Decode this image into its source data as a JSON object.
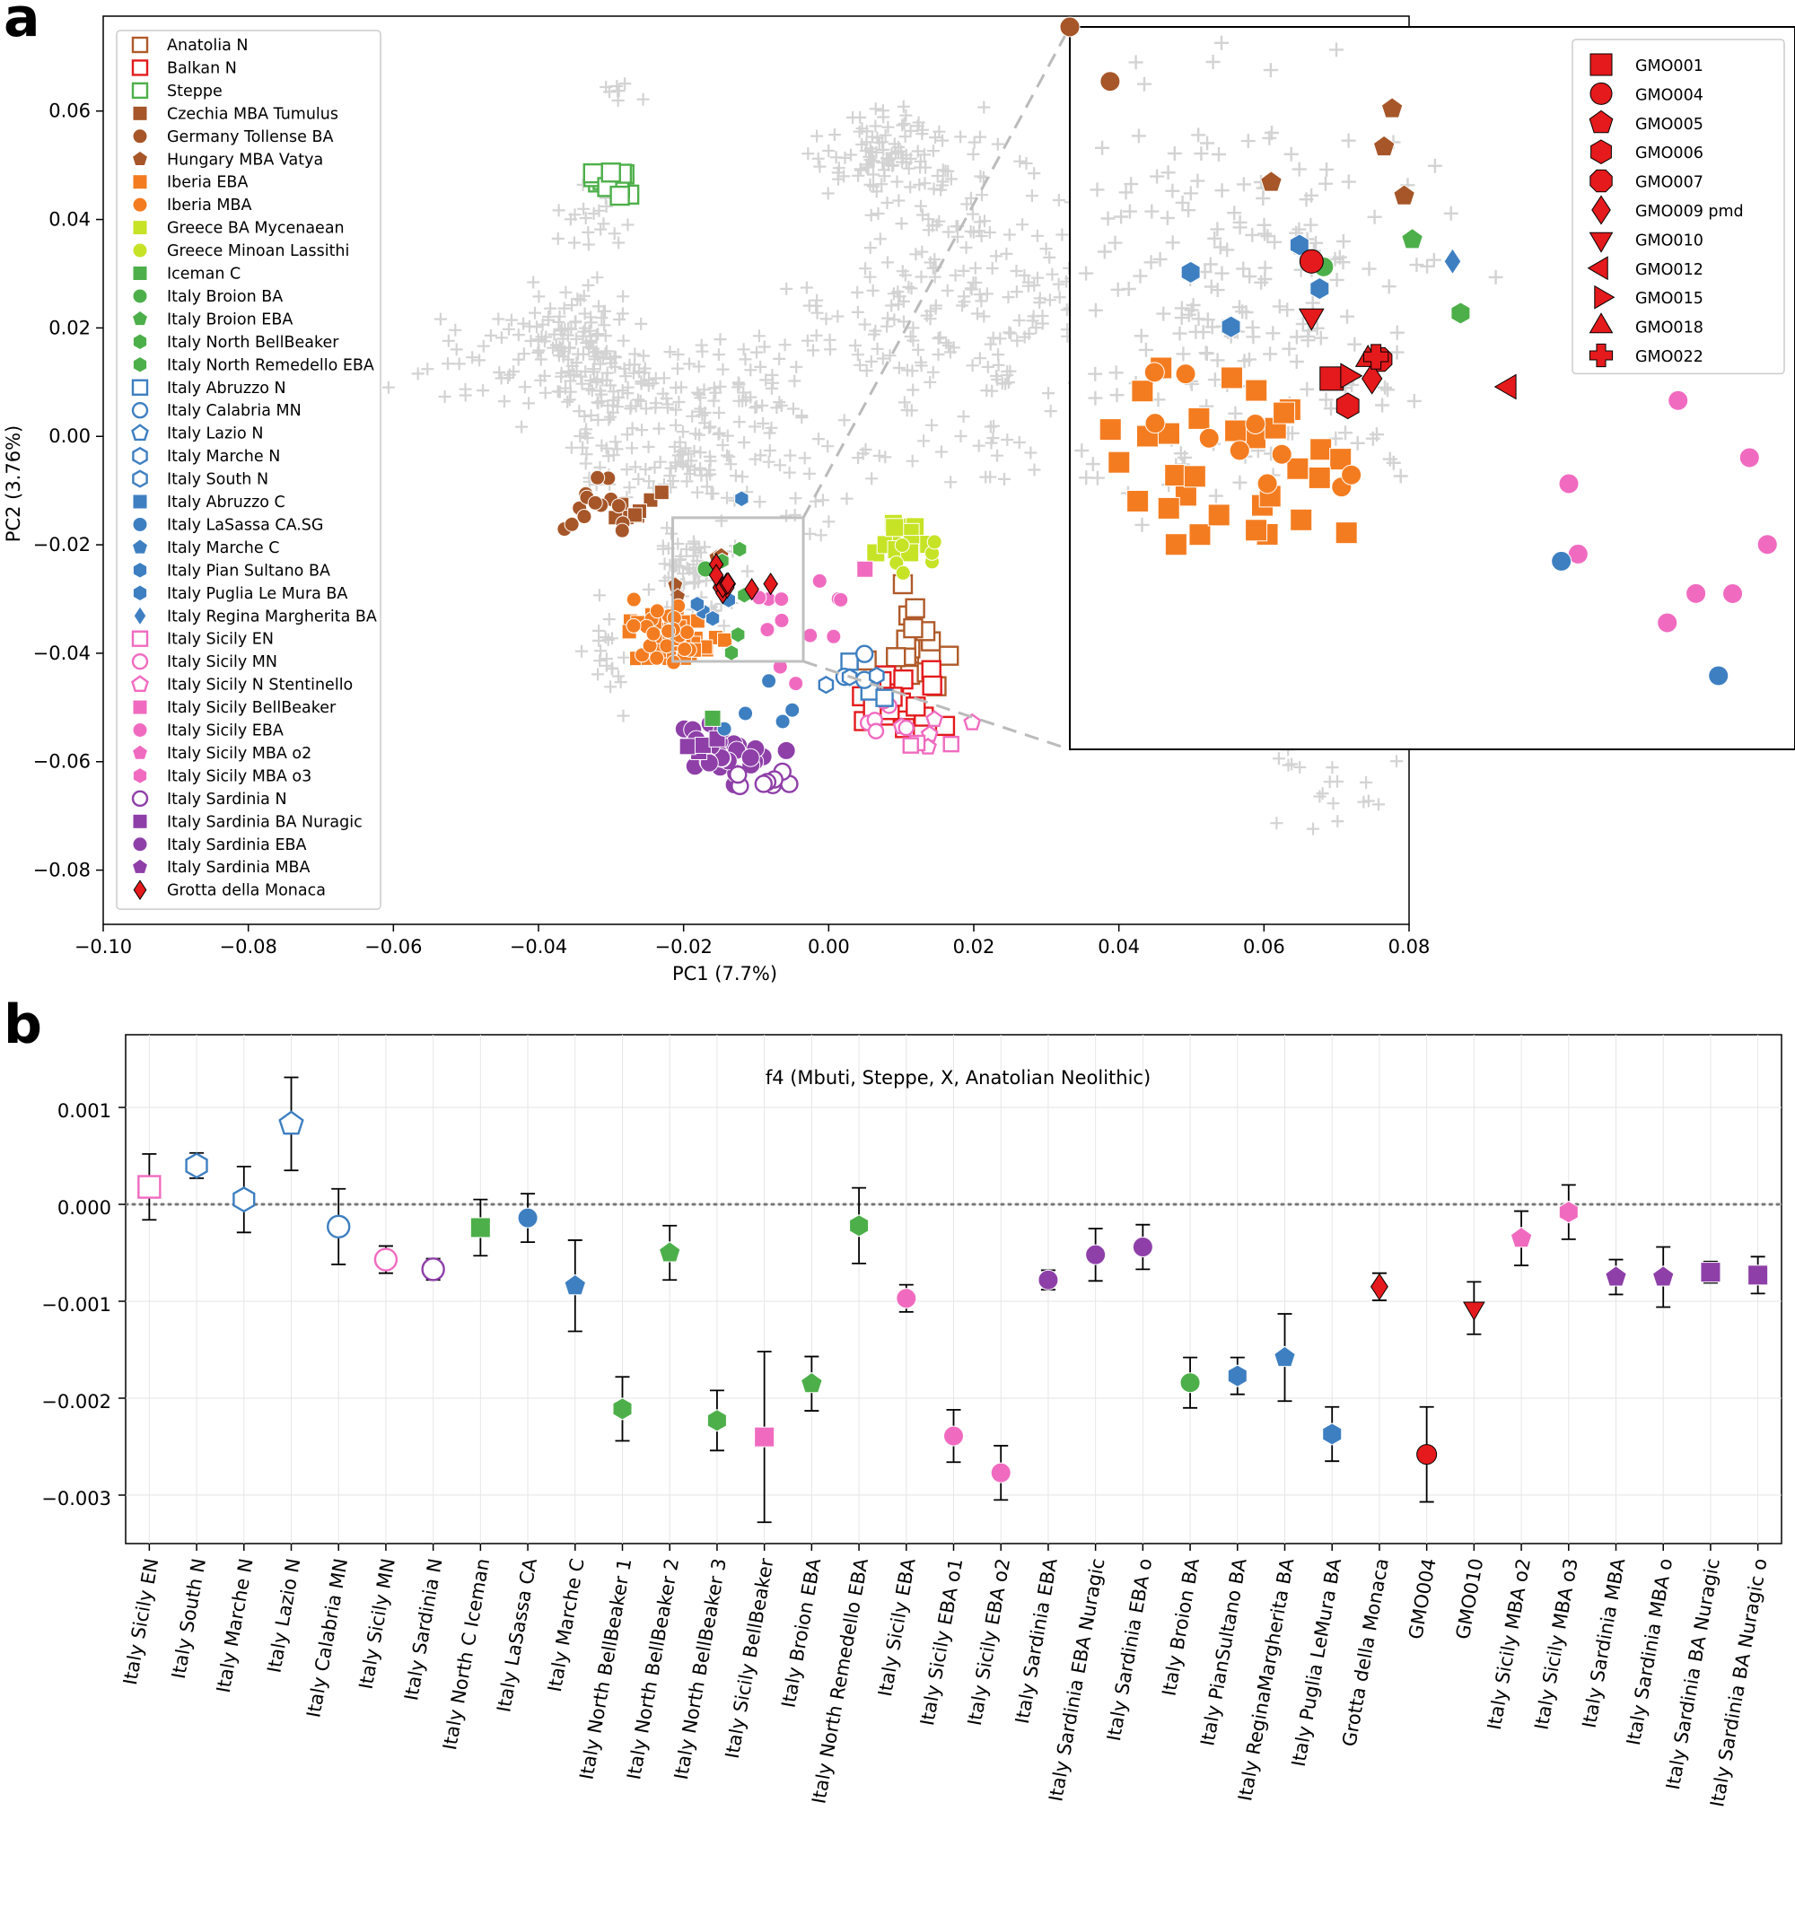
{
  "panel_a": {
    "letter": "a",
    "chart_data": {
      "type": "scatter",
      "title": "",
      "xlabel": "PC1 (7.7%)",
      "ylabel": "PC2 (3.76%)",
      "xlim": [
        -0.1,
        0.08
      ],
      "ylim": [
        -0.09,
        0.0775
      ],
      "xticks": [
        "−0.10",
        "−0.08",
        "−0.06",
        "−0.04",
        "−0.02",
        "0.00",
        "0.02",
        "0.04",
        "0.06",
        "0.08"
      ],
      "yticks": [
        "−0.08",
        "−0.06",
        "−0.04",
        "−0.02",
        "0.00",
        "0.02",
        "0.04",
        "0.06"
      ],
      "background_reference_marker": "+",
      "legend_position": "upper-left",
      "legend": [
        {
          "label": "Anatolia N",
          "marker": "square",
          "color": "#b05a2a",
          "filled": false
        },
        {
          "label": "Balkan N",
          "marker": "square",
          "color": "#e41a1c",
          "filled": false
        },
        {
          "label": "Steppe",
          "marker": "square",
          "color": "#4daf4a",
          "filled": false
        },
        {
          "label": "Czechia MBA Tumulus",
          "marker": "square",
          "color": "#a65628",
          "filled": true
        },
        {
          "label": "Germany Tollense BA",
          "marker": "circle",
          "color": "#a65628",
          "filled": true
        },
        {
          "label": "Hungary MBA Vatya",
          "marker": "pentagon",
          "color": "#a65628",
          "filled": true
        },
        {
          "label": "Iberia EBA",
          "marker": "square",
          "color": "#f47c20",
          "filled": true
        },
        {
          "label": "Iberia MBA",
          "marker": "circle",
          "color": "#f47c20",
          "filled": true
        },
        {
          "label": "Greece BA Mycenaean",
          "marker": "square",
          "color": "#c7e326",
          "filled": true
        },
        {
          "label": "Greece Minoan Lassithi",
          "marker": "circle",
          "color": "#c7e326",
          "filled": true
        },
        {
          "label": "Iceman C",
          "marker": "square",
          "color": "#4daf4a",
          "filled": true
        },
        {
          "label": "Italy Broion BA",
          "marker": "circle",
          "color": "#4daf4a",
          "filled": true
        },
        {
          "label": "Italy Broion EBA",
          "marker": "pentagon",
          "color": "#4daf4a",
          "filled": true
        },
        {
          "label": "Italy North BellBeaker",
          "marker": "hexagon",
          "color": "#4daf4a",
          "filled": true
        },
        {
          "label": "Italy North Remedello EBA",
          "marker": "hexagon",
          "color": "#4daf4a",
          "filled": true
        },
        {
          "label": "Italy Abruzzo N",
          "marker": "square",
          "color": "#3e7fc1",
          "filled": false
        },
        {
          "label": "Italy Calabria MN",
          "marker": "circle",
          "color": "#3e7fc1",
          "filled": false
        },
        {
          "label": "Italy Lazio N",
          "marker": "pentagon",
          "color": "#3e7fc1",
          "filled": false
        },
        {
          "label": "Italy Marche N",
          "marker": "hexagon",
          "color": "#3e7fc1",
          "filled": false
        },
        {
          "label": "Italy South N",
          "marker": "hexagon",
          "color": "#3e7fc1",
          "filled": false
        },
        {
          "label": "Italy Abruzzo C",
          "marker": "square",
          "color": "#3e7fc1",
          "filled": true
        },
        {
          "label": "Italy LaSassa CA.SG",
          "marker": "circle",
          "color": "#3e7fc1",
          "filled": true
        },
        {
          "label": "Italy Marche C",
          "marker": "pentagon",
          "color": "#3e7fc1",
          "filled": true
        },
        {
          "label": "Italy Pian Sultano BA",
          "marker": "hexagon",
          "color": "#3e7fc1",
          "filled": true
        },
        {
          "label": "Italy Puglia Le Mura BA",
          "marker": "hexagon",
          "color": "#3e7fc1",
          "filled": true
        },
        {
          "label": "Italy Regina Margherita BA",
          "marker": "diamond",
          "color": "#3e7fc1",
          "filled": true
        },
        {
          "label": "Italy Sicily EN",
          "marker": "square",
          "color": "#f06bc0",
          "filled": false
        },
        {
          "label": "Italy Sicily MN",
          "marker": "circle",
          "color": "#f06bc0",
          "filled": false
        },
        {
          "label": "Italy Sicily N Stentinello",
          "marker": "pentagon",
          "color": "#f06bc0",
          "filled": false
        },
        {
          "label": "Italy Sicily BellBeaker",
          "marker": "square",
          "color": "#f06bc0",
          "filled": true
        },
        {
          "label": "Italy Sicily EBA",
          "marker": "circle",
          "color": "#f06bc0",
          "filled": true
        },
        {
          "label": "Italy Sicily MBA o2",
          "marker": "pentagon",
          "color": "#f06bc0",
          "filled": true
        },
        {
          "label": "Italy Sicily MBA o3",
          "marker": "hexagon",
          "color": "#f06bc0",
          "filled": true
        },
        {
          "label": "Italy Sardinia N",
          "marker": "circle",
          "color": "#8e3fa8",
          "filled": false
        },
        {
          "label": "Italy Sardinia BA Nuragic",
          "marker": "square",
          "color": "#8e3fa8",
          "filled": true
        },
        {
          "label": "Italy Sardinia EBA",
          "marker": "circle",
          "color": "#8e3fa8",
          "filled": true
        },
        {
          "label": "Italy Sardinia MBA",
          "marker": "pentagon",
          "color": "#8e3fa8",
          "filled": true
        },
        {
          "label": "Grotta della Monaca",
          "marker": "diamond",
          "color": "#e41a1c",
          "filled": true
        }
      ],
      "group_centroids": [
        {
          "group": "Anatolia N",
          "pc1": 0.012,
          "pc2": -0.04
        },
        {
          "group": "Balkan N",
          "pc1": 0.01,
          "pc2": -0.048
        },
        {
          "group": "Steppe",
          "pc1": -0.03,
          "pc2": 0.047
        },
        {
          "group": "Czechia MBA Tumulus",
          "pc1": -0.026,
          "pc2": -0.013
        },
        {
          "group": "Germany Tollense BA",
          "pc1": -0.033,
          "pc2": -0.012
        },
        {
          "group": "Iberia EBA",
          "pc1": -0.022,
          "pc2": -0.037
        },
        {
          "group": "Iberia MBA",
          "pc1": -0.022,
          "pc2": -0.036
        },
        {
          "group": "Greece BA Mycenaean",
          "pc1": 0.01,
          "pc2": -0.019
        },
        {
          "group": "Greece Minoan Lassithi",
          "pc1": 0.011,
          "pc2": -0.022
        },
        {
          "group": "Italy Sicily EBA",
          "pc1": -0.004,
          "pc2": -0.035
        },
        {
          "group": "Italy Sardinia EBA",
          "pc1": -0.014,
          "pc2": -0.058
        },
        {
          "group": "Grotta della Monaca",
          "pc1": -0.012,
          "pc2": -0.034
        }
      ],
      "inset": {
        "xlim": [
          -0.0215,
          -0.0035
        ],
        "ylim": [
          -0.0415,
          -0.015
        ],
        "legend": [
          {
            "label": "GMO001",
            "marker": "square"
          },
          {
            "label": "GMO004",
            "marker": "circle"
          },
          {
            "label": "GMO005",
            "marker": "pentagon"
          },
          {
            "label": "GMO006",
            "marker": "hexagon"
          },
          {
            "label": "GMO007",
            "marker": "octagon"
          },
          {
            "label": "GMO009 pmd",
            "marker": "diamond"
          },
          {
            "label": "GMO010",
            "marker": "triangle-down"
          },
          {
            "label": "GMO012",
            "marker": "triangle-left"
          },
          {
            "label": "GMO015",
            "marker": "triangle-right"
          },
          {
            "label": "GMO018",
            "marker": "triangle-up"
          },
          {
            "label": "GMO022",
            "marker": "plus"
          }
        ],
        "samples": [
          {
            "id": "GMO001",
            "pc1": -0.015,
            "pc2": -0.0279
          },
          {
            "id": "GMO004",
            "pc1": -0.0155,
            "pc2": -0.0236
          },
          {
            "id": "GMO005",
            "pc1": -0.008,
            "pc2": -0.0272
          },
          {
            "id": "GMO006",
            "pc1": -0.0146,
            "pc2": -0.0289
          },
          {
            "id": "GMO007",
            "pc1": -0.0138,
            "pc2": -0.0272
          },
          {
            "id": "GMO009 pmd",
            "pc1": -0.014,
            "pc2": -0.0279
          },
          {
            "id": "GMO010",
            "pc1": -0.0155,
            "pc2": -0.0256
          },
          {
            "id": "GMO012",
            "pc1": -0.0106,
            "pc2": -0.0282
          },
          {
            "id": "GMO015",
            "pc1": -0.0146,
            "pc2": -0.0278
          },
          {
            "id": "GMO018",
            "pc1": -0.0141,
            "pc2": -0.0272
          },
          {
            "id": "GMO022",
            "pc1": -0.0139,
            "pc2": -0.0271
          }
        ]
      }
    }
  },
  "panel_b": {
    "letter": "b",
    "chart_data": {
      "type": "scatter",
      "subtype": "point-with-errorbars",
      "title": "f4 (Mbuti, Steppe, X, Anatolian Neolithic)",
      "xlabel": "",
      "ylabel": "",
      "ylim": [
        -0.0035,
        0.00175
      ],
      "yticks": [
        "0.001",
        "0.000",
        "−0.001",
        "−0.002",
        "−0.003"
      ],
      "reference_line": 0,
      "points": [
        {
          "label": "Italy Sicily EN",
          "value": 0.00018,
          "err": 0.00034,
          "marker": "square",
          "color": "#f06bc0",
          "filled": false
        },
        {
          "label": "Italy South N",
          "value": 0.0004,
          "err": 0.00013,
          "marker": "hexagon",
          "color": "#3e7fc1",
          "filled": false
        },
        {
          "label": "Italy Marche N",
          "value": 5e-05,
          "err": 0.00034,
          "marker": "hexagon",
          "color": "#3e7fc1",
          "filled": false
        },
        {
          "label": "Italy Lazio N",
          "value": 0.00083,
          "err": 0.00048,
          "marker": "pentagon",
          "color": "#3e7fc1",
          "filled": false
        },
        {
          "label": "Italy Calabria MN",
          "value": -0.00023,
          "err": 0.00039,
          "marker": "circle",
          "color": "#3e7fc1",
          "filled": false
        },
        {
          "label": "Italy Sicily MN",
          "value": -0.00057,
          "err": 0.00014,
          "marker": "circle",
          "color": "#f06bc0",
          "filled": false
        },
        {
          "label": "Italy Sardinia N",
          "value": -0.00067,
          "err": 0.00011,
          "marker": "circle",
          "color": "#8e3fa8",
          "filled": false
        },
        {
          "label": "Italy North C Iceman",
          "value": -0.00024,
          "err": 0.00029,
          "marker": "square",
          "color": "#4daf4a",
          "filled": true
        },
        {
          "label": "Italy LaSassa CA",
          "value": -0.00014,
          "err": 0.00025,
          "marker": "circle",
          "color": "#3e7fc1",
          "filled": true
        },
        {
          "label": "Italy Marche C",
          "value": -0.00084,
          "err": 0.00047,
          "marker": "pentagon",
          "color": "#3e7fc1",
          "filled": true
        },
        {
          "label": "Italy North BellBeaker 1",
          "value": -0.00211,
          "err": 0.00033,
          "marker": "hexagon",
          "color": "#4daf4a",
          "filled": true
        },
        {
          "label": "Italy North BellBeaker 2",
          "value": -0.0005,
          "err": 0.00028,
          "marker": "pentagon",
          "color": "#4daf4a",
          "filled": true
        },
        {
          "label": "Italy North BellBeaker 3",
          "value": -0.00223,
          "err": 0.00031,
          "marker": "hexagon",
          "color": "#4daf4a",
          "filled": true
        },
        {
          "label": "Italy Sicily BellBeaker",
          "value": -0.0024,
          "err": 0.00088,
          "marker": "square",
          "color": "#f06bc0",
          "filled": true
        },
        {
          "label": "Italy Broion EBA",
          "value": -0.00185,
          "err": 0.00028,
          "marker": "pentagon",
          "color": "#4daf4a",
          "filled": true
        },
        {
          "label": "Italy North Remedello EBA",
          "value": -0.00022,
          "err": 0.00039,
          "marker": "hexagon",
          "color": "#4daf4a",
          "filled": true
        },
        {
          "label": "Italy Sicily EBA",
          "value": -0.00097,
          "err": 0.00014,
          "marker": "circle",
          "color": "#f06bc0",
          "filled": true
        },
        {
          "label": "Italy Sicily EBA o1",
          "value": -0.00239,
          "err": 0.00027,
          "marker": "circle",
          "color": "#f06bc0",
          "filled": true
        },
        {
          "label": "Italy Sicily EBA o2",
          "value": -0.00277,
          "err": 0.00028,
          "marker": "circle",
          "color": "#f06bc0",
          "filled": true
        },
        {
          "label": "Italy Sardinia EBA",
          "value": -0.00078,
          "err": 0.0001,
          "marker": "circle",
          "color": "#8e3fa8",
          "filled": true
        },
        {
          "label": "Italy Sardinia EBA Nuragic",
          "value": -0.00052,
          "err": 0.00027,
          "marker": "circle",
          "color": "#8e3fa8",
          "filled": true
        },
        {
          "label": "Italy Sardinia EBA o",
          "value": -0.00044,
          "err": 0.00023,
          "marker": "circle",
          "color": "#8e3fa8",
          "filled": true
        },
        {
          "label": "Italy Broion BA",
          "value": -0.00184,
          "err": 0.00026,
          "marker": "circle",
          "color": "#4daf4a",
          "filled": true
        },
        {
          "label": "Italy PianSultano BA",
          "value": -0.00177,
          "err": 0.00019,
          "marker": "hexagon",
          "color": "#3e7fc1",
          "filled": true
        },
        {
          "label": "Italy ReginaMargherita BA",
          "value": -0.00158,
          "err": 0.00045,
          "marker": "pentagon",
          "color": "#3e7fc1",
          "filled": true
        },
        {
          "label": "Italy Puglia LeMura BA",
          "value": -0.00237,
          "err": 0.00028,
          "marker": "hexagon",
          "color": "#3e7fc1",
          "filled": true
        },
        {
          "label": "Grotta della Monaca",
          "value": -0.00085,
          "err": 0.00014,
          "marker": "diamond",
          "color": "#e41a1c",
          "filled": true
        },
        {
          "label": "GMO004",
          "value": -0.00258,
          "err": 0.00049,
          "marker": "circle",
          "color": "#e41a1c",
          "filled": true
        },
        {
          "label": "GMO010",
          "value": -0.00107,
          "err": 0.00027,
          "marker": "triangle-down",
          "color": "#e41a1c",
          "filled": true
        },
        {
          "label": "Italy Sicily MBA o2",
          "value": -0.00035,
          "err": 0.00028,
          "marker": "pentagon",
          "color": "#f06bc0",
          "filled": true
        },
        {
          "label": "Italy Sicily MBA o3",
          "value": -8e-05,
          "err": 0.00028,
          "marker": "hexagon",
          "color": "#f06bc0",
          "filled": true
        },
        {
          "label": "Italy Sardinia MBA",
          "value": -0.00075,
          "err": 0.00018,
          "marker": "pentagon",
          "color": "#8e3fa8",
          "filled": true
        },
        {
          "label": "Italy Sardinia MBA o",
          "value": -0.00075,
          "err": 0.00031,
          "marker": "pentagon",
          "color": "#8e3fa8",
          "filled": true
        },
        {
          "label": "Italy Sardinia BA Nuragic",
          "value": -0.0007,
          "err": 0.00011,
          "marker": "square",
          "color": "#8e3fa8",
          "filled": true
        },
        {
          "label": "Italy Sardinia BA Nuragic o",
          "value": -0.00073,
          "err": 0.00019,
          "marker": "square",
          "color": "#8e3fa8",
          "filled": true
        }
      ]
    }
  },
  "colors": {
    "background_reference": "#d3d3d3",
    "grotta": "#e41a1c",
    "grid": "#e6e6e6",
    "zero_line": "#777777"
  }
}
